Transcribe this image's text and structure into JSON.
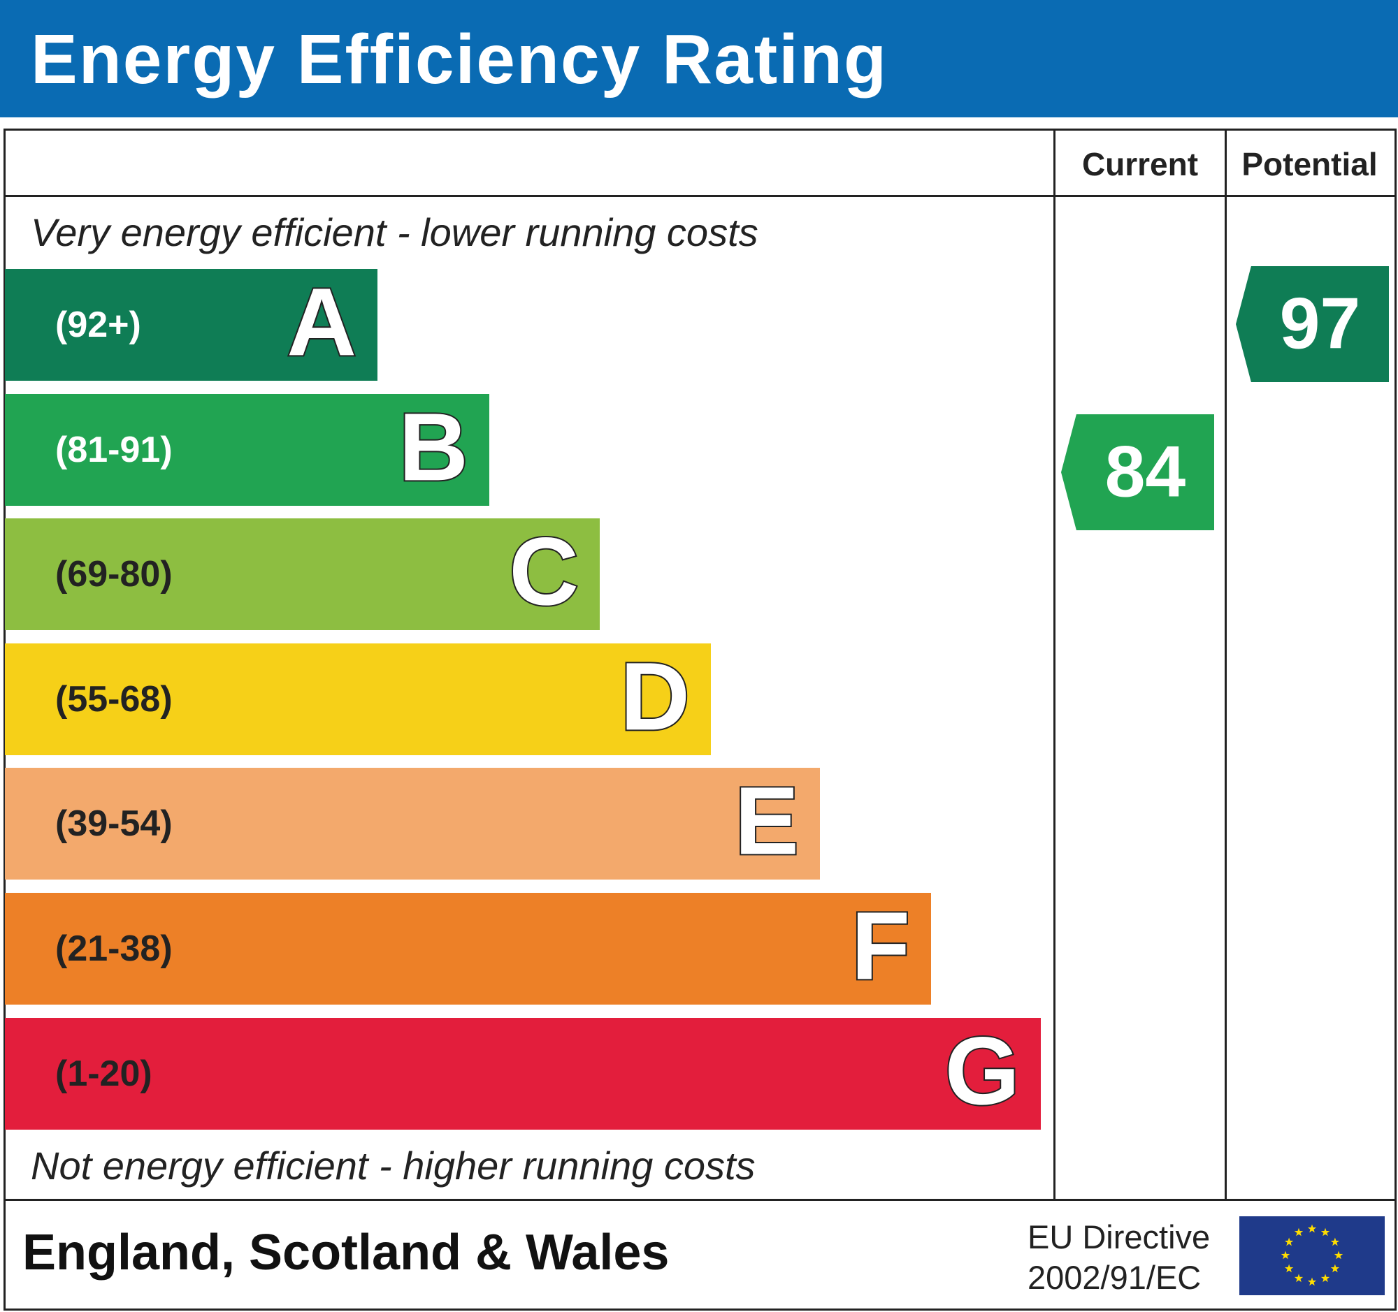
{
  "title": "Energy Efficiency Rating",
  "columns": {
    "current": "Current",
    "potential": "Potential"
  },
  "top_note": "Very energy efficient - lower running costs",
  "bottom_note": "Not energy efficient - higher running costs",
  "region": "England, Scotland & Wales",
  "directive": {
    "line1": "EU Directive",
    "line2": "2002/91/EC"
  },
  "colors": {
    "header": "#0a6bb3",
    "flag": "#1f3a8a",
    "stars": "#ffdd00"
  },
  "chart_data": {
    "type": "bar",
    "categories": [
      "A",
      "B",
      "C",
      "D",
      "E",
      "F",
      "G"
    ],
    "bands": [
      {
        "letter": "A",
        "range": "(92+)",
        "color": "#0f7d55",
        "dark_text": false
      },
      {
        "letter": "B",
        "range": "(81-91)",
        "color": "#21a452",
        "dark_text": false
      },
      {
        "letter": "C",
        "range": "(69-80)",
        "color": "#8dbe41",
        "dark_text": true
      },
      {
        "letter": "D",
        "range": "(55-68)",
        "color": "#f6d018",
        "dark_text": true
      },
      {
        "letter": "E",
        "range": "(39-54)",
        "color": "#f3a96c",
        "dark_text": true
      },
      {
        "letter": "F",
        "range": "(21-38)",
        "color": "#ed8027",
        "dark_text": true
      },
      {
        "letter": "G",
        "range": "(1-20)",
        "color": "#e31e3c",
        "dark_text": true
      }
    ],
    "current": {
      "value": "84",
      "band": "B",
      "color": "#21a452"
    },
    "potential": {
      "value": "97",
      "band": "A",
      "color": "#0f7d55"
    }
  }
}
